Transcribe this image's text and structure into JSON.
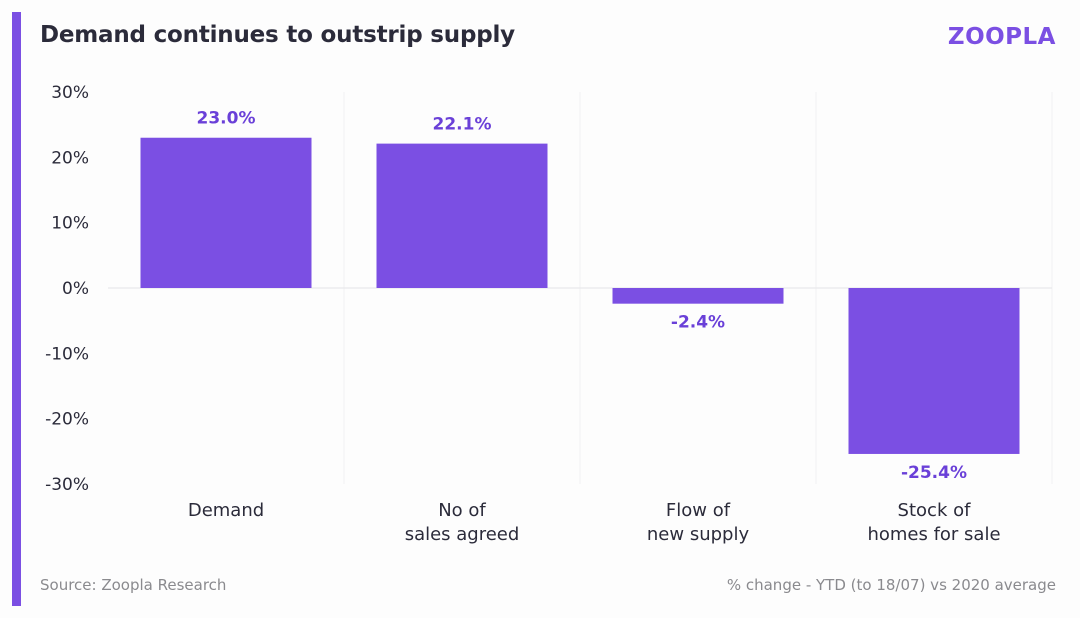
{
  "header": {
    "title": "Demand continues to outstrip supply",
    "logo": "ZOOPLA"
  },
  "footer": {
    "source": "Source: Zoopla Research",
    "note": "% change - YTD (to 18/07) vs 2020 average"
  },
  "colors": {
    "accent": "#7b4fe3",
    "bar": "#7b4fe3",
    "label": "#6a40d8",
    "text": "#2b2b3a",
    "muted": "#8a8a8e"
  },
  "chart_data": {
    "type": "bar",
    "categories": [
      [
        "Demand"
      ],
      [
        "No of",
        "sales agreed"
      ],
      [
        "Flow of",
        "new supply"
      ],
      [
        "Stock of",
        "homes for sale"
      ]
    ],
    "values": [
      23.0,
      22.1,
      -2.4,
      -25.4
    ],
    "data_labels": [
      "23.0%",
      "22.1%",
      "-2.4%",
      "-25.4%"
    ],
    "y_ticks": [
      "30%",
      "20%",
      "10%",
      "0%",
      "-10%",
      "-20%",
      "-30%"
    ],
    "y_tick_values": [
      30,
      20,
      10,
      0,
      -10,
      -20,
      -30
    ],
    "ylim": [
      -30,
      30
    ],
    "title": "Demand continues to outstrip supply",
    "xlabel": "",
    "ylabel": "",
    "grid": false,
    "legend": "none"
  }
}
